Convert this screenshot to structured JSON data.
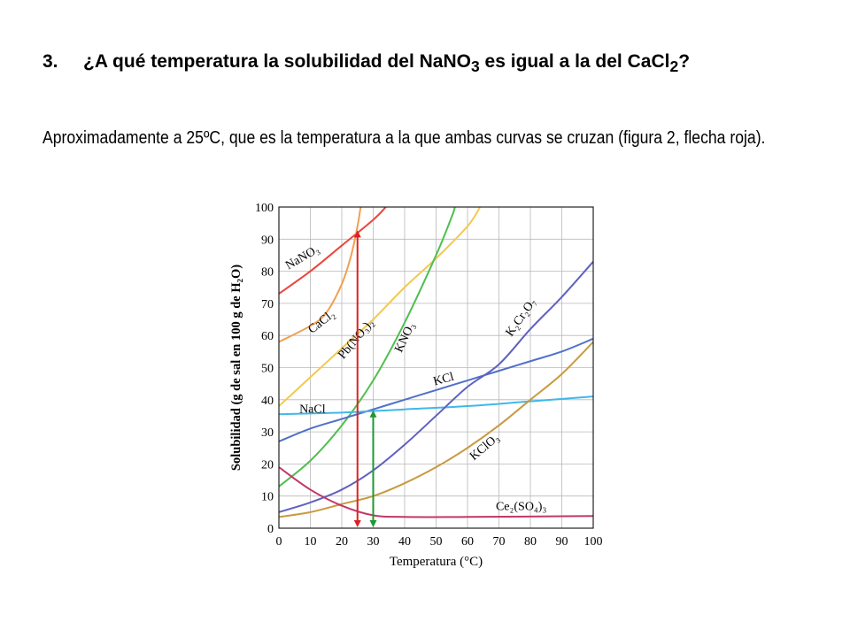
{
  "question": {
    "number": "3.",
    "text_before": "¿A qué temperatura la solubilidad del NaNO",
    "sub1": "3",
    "text_middle": " es igual a la del CaCl",
    "sub2": "2",
    "text_after": "?"
  },
  "answer": {
    "text": "Aproximadamente a 25ºC, que es la temperatura a la que ambas curvas se cruzan (figura 2, flecha roja)."
  },
  "chart_data": {
    "type": "line",
    "xlabel": "Temperatura (°C)",
    "ylabel": "Solubilidad (g de sal en 100 g de H₂O)",
    "xlim": [
      0,
      100
    ],
    "ylim": [
      0,
      100
    ],
    "xticks": [
      0,
      10,
      20,
      30,
      40,
      50,
      60,
      70,
      80,
      90,
      100
    ],
    "yticks": [
      0,
      10,
      20,
      30,
      40,
      50,
      60,
      70,
      80,
      90,
      100
    ],
    "grid": true,
    "series": [
      {
        "name": "NaNO₃",
        "color": "#e8463c",
        "points": [
          [
            0,
            73
          ],
          [
            10,
            80
          ],
          [
            20,
            88
          ],
          [
            30,
            96
          ],
          [
            34,
            100
          ]
        ]
      },
      {
        "name": "CaCl₂",
        "color": "#f0a050",
        "points": [
          [
            0,
            58
          ],
          [
            10,
            63
          ],
          [
            15,
            67
          ],
          [
            20,
            76
          ],
          [
            23,
            85
          ],
          [
            25,
            94
          ],
          [
            26,
            100
          ]
        ]
      },
      {
        "name": "Pb(NO₃)₂",
        "color": "#f2c850",
        "points": [
          [
            0,
            38
          ],
          [
            10,
            47
          ],
          [
            20,
            56
          ],
          [
            30,
            65
          ],
          [
            40,
            75
          ],
          [
            50,
            84
          ],
          [
            60,
            94
          ],
          [
            64,
            100
          ]
        ]
      },
      {
        "name": "KNO₃",
        "color": "#4fbf4f",
        "points": [
          [
            0,
            13
          ],
          [
            10,
            21
          ],
          [
            20,
            32
          ],
          [
            30,
            46
          ],
          [
            40,
            64
          ],
          [
            50,
            85
          ],
          [
            55,
            97
          ],
          [
            56,
            100
          ]
        ]
      },
      {
        "name": "KCl",
        "color": "#5070c8",
        "points": [
          [
            0,
            27
          ],
          [
            10,
            31
          ],
          [
            20,
            34
          ],
          [
            30,
            37
          ],
          [
            40,
            40
          ],
          [
            50,
            43
          ],
          [
            60,
            46
          ],
          [
            70,
            49
          ],
          [
            80,
            52
          ],
          [
            90,
            55
          ],
          [
            100,
            59
          ]
        ]
      },
      {
        "name": "NaCl",
        "color": "#40b8e8",
        "points": [
          [
            0,
            35.5
          ],
          [
            20,
            36
          ],
          [
            40,
            37
          ],
          [
            60,
            38
          ],
          [
            80,
            39.5
          ],
          [
            100,
            41
          ]
        ]
      },
      {
        "name": "K₂Cr₂O₇",
        "color": "#6060c0",
        "points": [
          [
            0,
            5
          ],
          [
            10,
            8
          ],
          [
            20,
            12
          ],
          [
            30,
            18
          ],
          [
            40,
            26
          ],
          [
            50,
            35
          ],
          [
            60,
            44
          ],
          [
            70,
            51
          ],
          [
            80,
            62
          ],
          [
            90,
            72
          ],
          [
            100,
            83
          ]
        ]
      },
      {
        "name": "KClO₃",
        "color": "#c89a40",
        "points": [
          [
            0,
            3.5
          ],
          [
            10,
            5
          ],
          [
            20,
            7.5
          ],
          [
            30,
            10
          ],
          [
            40,
            14
          ],
          [
            50,
            19
          ],
          [
            60,
            25
          ],
          [
            70,
            32
          ],
          [
            80,
            40
          ],
          [
            90,
            48
          ],
          [
            100,
            58
          ]
        ]
      },
      {
        "name": "Ce₂(SO₄)₃",
        "color": "#c03868",
        "points": [
          [
            0,
            19
          ],
          [
            10,
            12
          ],
          [
            20,
            7
          ],
          [
            30,
            4
          ],
          [
            40,
            3.5
          ],
          [
            60,
            3.5
          ],
          [
            100,
            3.8
          ]
        ]
      }
    ],
    "arrows": [
      {
        "color": "#e02020",
        "x": 25,
        "y_from": 0,
        "y_to": 93
      },
      {
        "color": "#1e9a2e",
        "x": 30,
        "y_from": 0,
        "y_to": 37
      }
    ]
  }
}
